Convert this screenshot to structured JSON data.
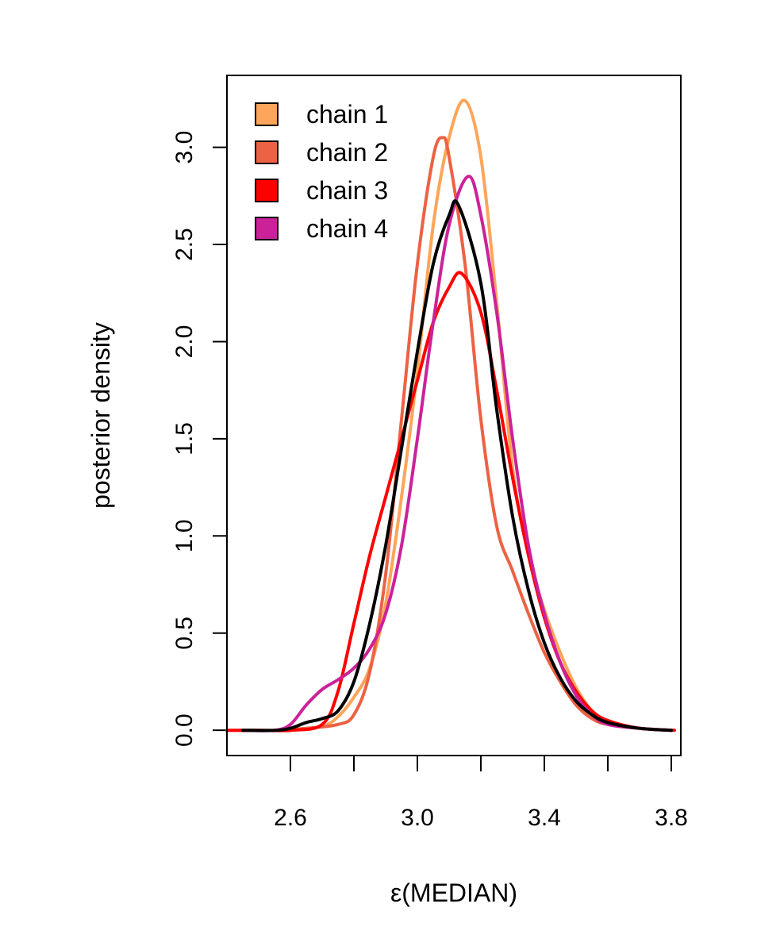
{
  "chart_data": {
    "type": "line",
    "title": "",
    "xlabel": "ε(MEDIAN)",
    "ylabel": "posterior density",
    "xlim": [
      2.4,
      3.83
    ],
    "ylim": [
      -0.13,
      3.37
    ],
    "xticks": [
      2.6,
      3.0,
      3.4,
      3.8
    ],
    "xtick_labels": [
      "2.6",
      "3.0",
      "3.4",
      "3.8"
    ],
    "xticks_unlabeled": [
      2.8,
      3.2,
      3.6
    ],
    "yticks": [
      0.0,
      0.5,
      1.0,
      1.5,
      2.0,
      2.5,
      3.0
    ],
    "ytick_labels": [
      "0.0",
      "0.5",
      "1.0",
      "1.5",
      "2.0",
      "2.5",
      "3.0"
    ],
    "grid": false,
    "legend_position": "top-left",
    "series": [
      {
        "name": "chain 1",
        "color": "#FDA55A",
        "in_legend": true,
        "x": [
          2.4,
          2.5,
          2.6,
          2.7,
          2.75,
          2.8,
          2.85,
          2.9,
          2.95,
          3.0,
          3.05,
          3.1,
          3.15,
          3.2,
          3.25,
          3.3,
          3.35,
          3.4,
          3.45,
          3.5,
          3.55,
          3.6,
          3.7,
          3.8
        ],
        "y": [
          0.0,
          0.0,
          0.0,
          0.02,
          0.07,
          0.17,
          0.32,
          0.65,
          1.2,
          1.85,
          2.6,
          3.05,
          3.24,
          2.95,
          2.2,
          1.35,
          0.9,
          0.62,
          0.4,
          0.22,
          0.1,
          0.04,
          0.01,
          0.0
        ]
      },
      {
        "name": "chain 2",
        "color": "#EC6244",
        "in_legend": true,
        "x": [
          2.45,
          2.55,
          2.65,
          2.75,
          2.8,
          2.85,
          2.9,
          2.95,
          3.0,
          3.05,
          3.08,
          3.1,
          3.15,
          3.2,
          3.25,
          3.3,
          3.35,
          3.4,
          3.45,
          3.5,
          3.55,
          3.6,
          3.7,
          3.8
        ],
        "y": [
          0.0,
          0.0,
          0.01,
          0.03,
          0.08,
          0.3,
          0.8,
          1.6,
          2.4,
          2.95,
          3.05,
          2.95,
          2.4,
          1.6,
          1.05,
          0.82,
          0.6,
          0.4,
          0.25,
          0.13,
          0.06,
          0.03,
          0.01,
          0.0
        ]
      },
      {
        "name": "chain 3",
        "color": "#FF0000",
        "in_legend": true,
        "x": [
          2.4,
          2.5,
          2.6,
          2.7,
          2.75,
          2.8,
          2.85,
          2.9,
          2.95,
          3.0,
          3.05,
          3.1,
          3.14,
          3.2,
          3.25,
          3.3,
          3.35,
          3.4,
          3.45,
          3.5,
          3.55,
          3.6,
          3.7,
          3.81
        ],
        "y": [
          0.0,
          0.0,
          0.0,
          0.03,
          0.2,
          0.55,
          0.9,
          1.2,
          1.5,
          1.8,
          2.1,
          2.28,
          2.35,
          2.15,
          1.75,
          1.3,
          0.9,
          0.58,
          0.35,
          0.2,
          0.1,
          0.05,
          0.01,
          0.0
        ]
      },
      {
        "name": "chain 4",
        "color": "#CC2299",
        "in_legend": true,
        "x": [
          2.45,
          2.55,
          2.6,
          2.65,
          2.7,
          2.75,
          2.8,
          2.85,
          2.9,
          2.95,
          3.0,
          3.05,
          3.1,
          3.16,
          3.2,
          3.25,
          3.3,
          3.35,
          3.4,
          3.45,
          3.5,
          3.55,
          3.6,
          3.7,
          3.8
        ],
        "y": [
          0.0,
          0.0,
          0.03,
          0.13,
          0.21,
          0.26,
          0.32,
          0.42,
          0.6,
          0.95,
          1.5,
          2.1,
          2.6,
          2.85,
          2.65,
          2.15,
          1.5,
          0.95,
          0.6,
          0.35,
          0.18,
          0.08,
          0.03,
          0.01,
          0.0
        ]
      },
      {
        "name": "",
        "color": "#000000",
        "in_legend": false,
        "x": [
          2.45,
          2.55,
          2.6,
          2.65,
          2.7,
          2.75,
          2.8,
          2.85,
          2.9,
          2.95,
          3.0,
          3.05,
          3.1,
          3.13,
          3.2,
          3.25,
          3.3,
          3.35,
          3.4,
          3.45,
          3.5,
          3.55,
          3.6,
          3.7,
          3.8
        ],
        "y": [
          0.0,
          0.0,
          0.01,
          0.04,
          0.06,
          0.1,
          0.25,
          0.55,
          0.95,
          1.45,
          1.95,
          2.4,
          2.65,
          2.7,
          2.3,
          1.65,
          1.1,
          0.72,
          0.45,
          0.27,
          0.15,
          0.08,
          0.04,
          0.01,
          0.0
        ]
      }
    ]
  }
}
